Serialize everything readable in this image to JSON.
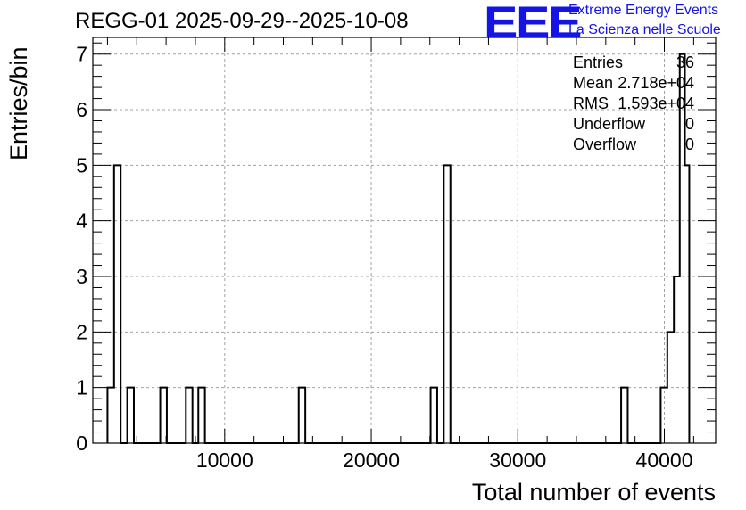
{
  "chart_data": {
    "type": "histogram",
    "title": "REGG-01 2025-09-29--2025-10-08",
    "xlabel": "Total number of events",
    "ylabel": "Entries/bin",
    "xlim": [
      1000,
      43500
    ],
    "ylim": [
      0,
      7.3
    ],
    "x_ticks": [
      10000,
      20000,
      30000,
      40000
    ],
    "x_tick_labels": [
      "10000",
      "20000",
      "30000",
      "40000"
    ],
    "y_ticks": [
      0,
      1,
      2,
      3,
      4,
      5,
      6,
      7
    ],
    "y_tick_labels": [
      "0",
      "1",
      "2",
      "3",
      "4",
      "5",
      "6",
      "7"
    ],
    "grid": true,
    "bin_width": 450,
    "bins": [
      {
        "x0": 2000,
        "x1": 2450,
        "value": 1
      },
      {
        "x0": 2450,
        "x1": 2900,
        "value": 5
      },
      {
        "x0": 3350,
        "x1": 3800,
        "value": 1
      },
      {
        "x0": 5600,
        "x1": 6050,
        "value": 1
      },
      {
        "x0": 7350,
        "x1": 7800,
        "value": 1
      },
      {
        "x0": 8200,
        "x1": 8650,
        "value": 1
      },
      {
        "x0": 15050,
        "x1": 15500,
        "value": 1
      },
      {
        "x0": 24050,
        "x1": 24500,
        "value": 1
      },
      {
        "x0": 24950,
        "x1": 25400,
        "value": 5
      },
      {
        "x0": 37050,
        "x1": 37500,
        "value": 1
      },
      {
        "x0": 39750,
        "x1": 40200,
        "value": 1
      },
      {
        "x0": 40200,
        "x1": 40650,
        "value": 2
      },
      {
        "x0": 40650,
        "x1": 41050,
        "value": 3
      },
      {
        "x0": 41050,
        "x1": 41400,
        "value": 7
      },
      {
        "x0": 41400,
        "x1": 41700,
        "value": 5
      }
    ]
  },
  "stats_box": {
    "entries_label": "Entries",
    "entries_value": "36",
    "mean_label": "Mean",
    "mean_value": "2.718e+04",
    "rms_label": "RMS",
    "rms_value": "1.593e+04",
    "underflow_label": "Underflow",
    "underflow_value": "0",
    "overflow_label": "Overflow",
    "overflow_value": "0"
  },
  "logo": {
    "mark": "EEE",
    "line1": "Extreme Energy Events",
    "line2": "La Scienza nelle Scuole"
  },
  "colors": {
    "axis": "#000000",
    "grid": "#a0a0a0",
    "logo": "#1414e6",
    "histogram": "#000000"
  }
}
